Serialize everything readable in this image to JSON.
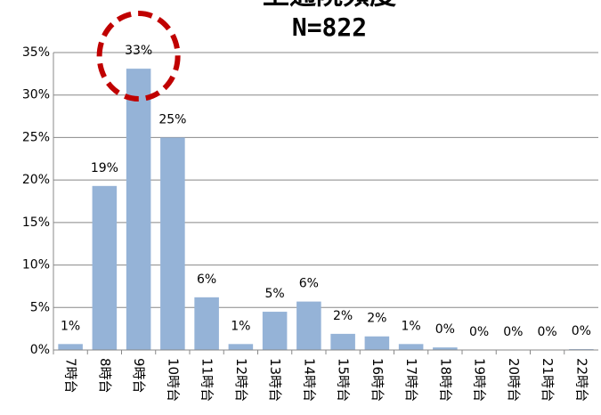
{
  "chart_data": {
    "type": "bar",
    "title": "上通院頻度",
    "subtitle": "N=822",
    "categories": [
      "7時台",
      "8時台",
      "9時台",
      "10時台",
      "11時台",
      "12時台",
      "13時台",
      "14時台",
      "15時台",
      "16時台",
      "17時台",
      "18時台",
      "19時台",
      "20時台",
      "21時台",
      "22時台"
    ],
    "values": [
      0.7,
      19.3,
      33.1,
      25.0,
      6.2,
      0.7,
      4.5,
      5.7,
      1.9,
      1.6,
      0.7,
      0.3,
      0,
      0,
      0,
      0.1
    ],
    "value_labels": [
      "1%",
      "19%",
      "33%",
      "25%",
      "6%",
      "1%",
      "5%",
      "6%",
      "2%",
      "2%",
      "1%",
      "0%",
      "0%",
      "0%",
      "0%",
      "0%"
    ],
    "color": "#95b3d7",
    "ylim": [
      0,
      35
    ],
    "yticks": [
      {
        "value": 0,
        "label": "0%"
      },
      {
        "value": 5,
        "label": "5%"
      },
      {
        "value": 10,
        "label": "10%"
      },
      {
        "value": 15,
        "label": "15%"
      },
      {
        "value": 20,
        "label": "20%"
      },
      {
        "value": 25,
        "label": "25%"
      },
      {
        "value": 30,
        "label": "30%"
      },
      {
        "value": 35,
        "label": "35%"
      }
    ],
    "grid": true
  }
}
